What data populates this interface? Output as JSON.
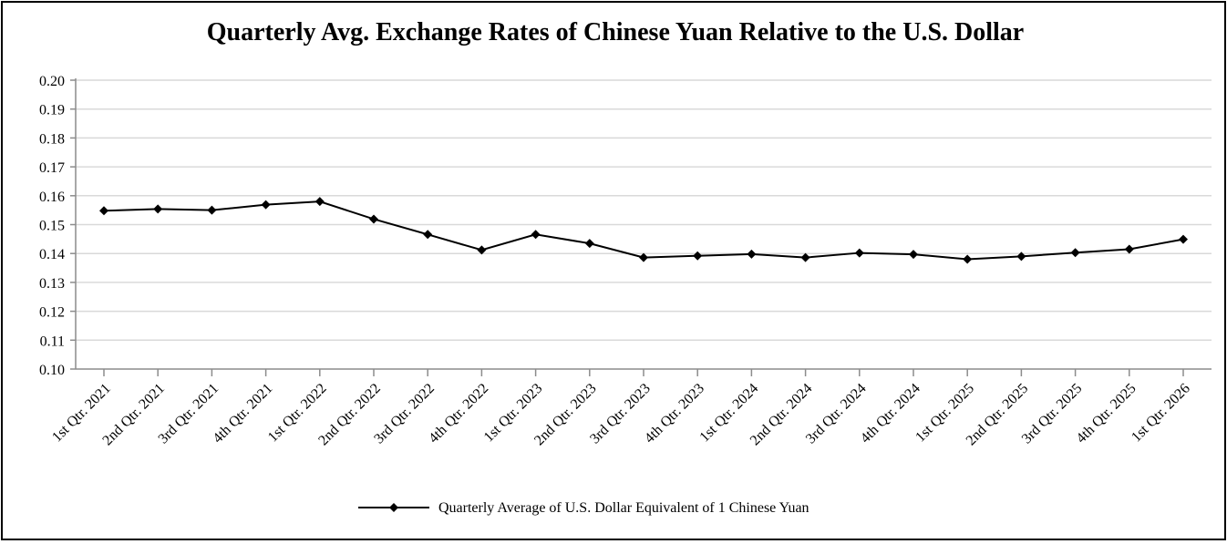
{
  "chart_data": {
    "type": "line",
    "title": "Quarterly Avg. Exchange Rates of Chinese Yuan Relative to the U.S. Dollar",
    "xlabel": "",
    "ylabel": "",
    "ylim": [
      0.1,
      0.2
    ],
    "y_ticks": [
      "0.10",
      "0.11",
      "0.12",
      "0.13",
      "0.14",
      "0.15",
      "0.16",
      "0.17",
      "0.18",
      "0.19",
      "0.20"
    ],
    "y_tick_values": [
      0.1,
      0.11,
      0.12,
      0.13,
      0.14,
      0.15,
      0.16,
      0.17,
      0.18,
      0.19,
      0.2
    ],
    "grid": true,
    "legend_position": "bottom",
    "categories": [
      "1st Qtr. 2021",
      "2nd Qtr. 2021",
      "3rd Qtr. 2021",
      "4th Qtr. 2021",
      "1st Qtr. 2022",
      "2nd Qtr. 2022",
      "3rd Qtr. 2022",
      "4th Qtr. 2022",
      "1st Qtr. 2023",
      "2nd Qtr. 2023",
      "3rd Qtr. 2023",
      "4th Qtr. 2023",
      "1st Qtr. 2024",
      "2nd Qtr. 2024",
      "3rd Qtr. 2024",
      "4th Qtr. 2024",
      "1st Qtr. 2025",
      "2nd Qtr. 2025",
      "3rd Qtr. 2025",
      "4th Qtr. 2025",
      "1st Qtr. 2026"
    ],
    "series": [
      {
        "name": "Quarterly Average of U.S. Dollar Equivalent of 1 Chinese Yuan",
        "color": "#000000",
        "marker": "diamond",
        "values": [
          0.1548,
          0.1554,
          0.155,
          0.1569,
          0.158,
          0.1519,
          0.1466,
          0.1412,
          0.1466,
          0.1435,
          0.1386,
          0.1392,
          0.1398,
          0.1386,
          0.1402,
          0.1397,
          0.138,
          0.139,
          0.1403,
          0.1415,
          0.1449
        ]
      }
    ]
  }
}
